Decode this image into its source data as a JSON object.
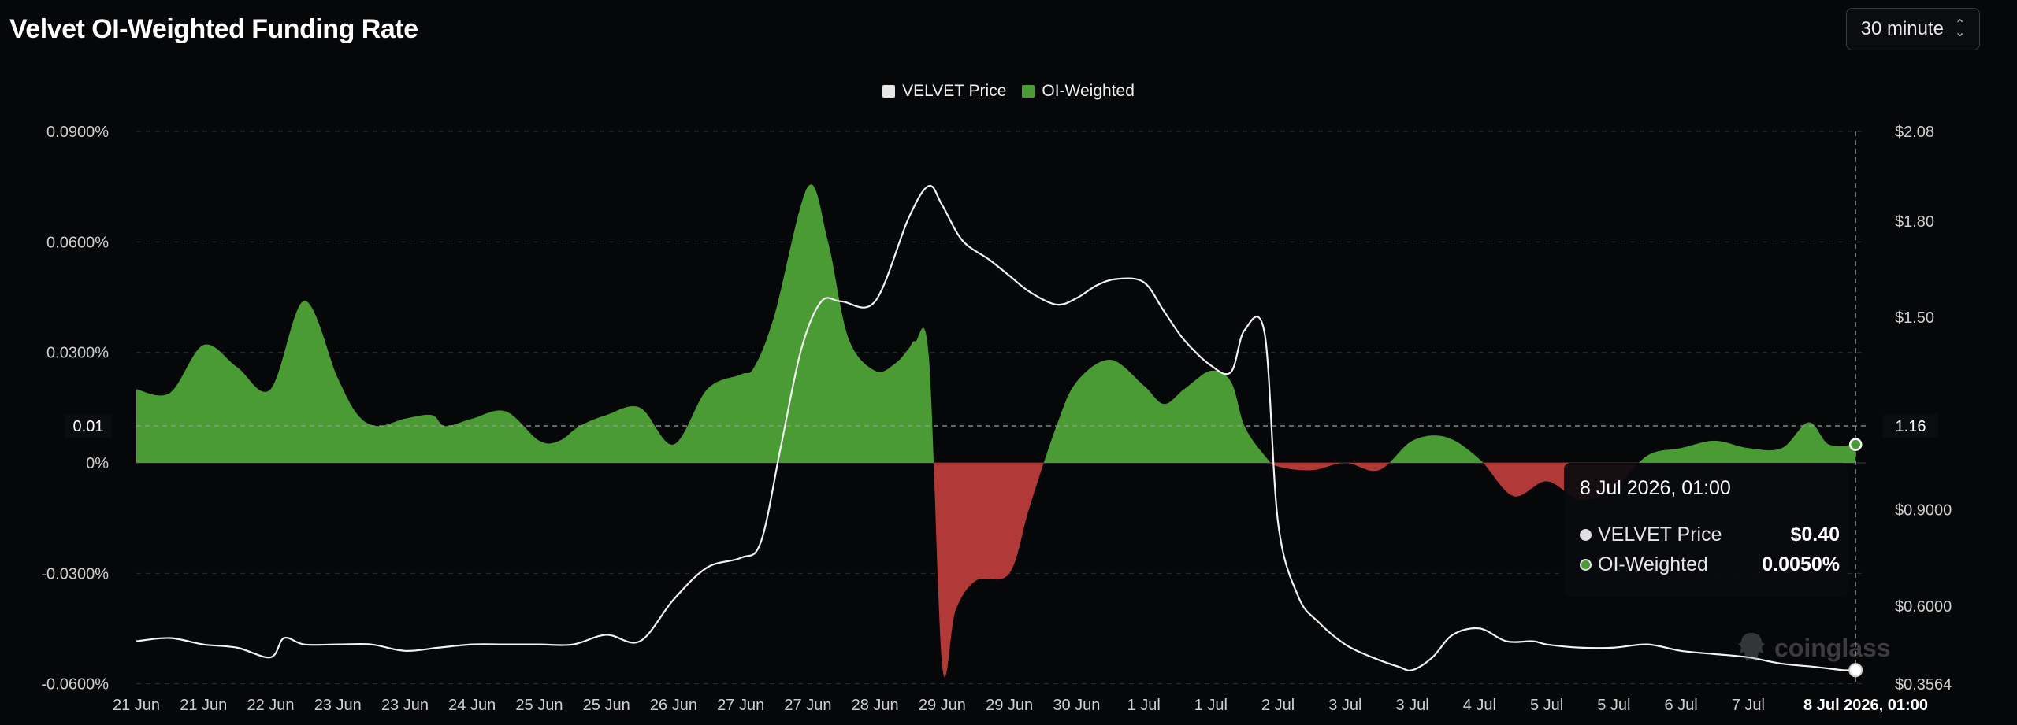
{
  "page": {
    "title": "Velvet OI-Weighted Funding Rate"
  },
  "controls": {
    "interval_label": "30 minute",
    "interval_icon": "chevron-updown-icon"
  },
  "legend": [
    {
      "label": "VELVET Price",
      "color": "#e6e6e6"
    },
    {
      "label": "OI-Weighted",
      "color": "#4a9b34"
    }
  ],
  "tooltip": {
    "time": "8 Jul 2026, 01:00",
    "rows": [
      {
        "label": "VELVET Price",
        "value": "$0.40"
      },
      {
        "label": "OI-Weighted",
        "value": "0.0050%"
      }
    ]
  },
  "crosshair": {
    "left_label": "0.01",
    "right_label": "1.16"
  },
  "watermark": {
    "text": "coinglass"
  },
  "colors": {
    "positive": "#4a9b34",
    "negative": "#b13a38",
    "price": "#f2f2f2",
    "background": "#060709"
  },
  "chart_data": {
    "type": "area",
    "x_labels": [
      "21 Jun",
      "21 Jun",
      "22 Jun",
      "23 Jun",
      "23 Jun",
      "24 Jun",
      "25 Jun",
      "25 Jun",
      "26 Jun",
      "27 Jun",
      "27 Jun",
      "28 Jun",
      "29 Jun",
      "29 Jun",
      "30 Jun",
      "1 Jul",
      "1 Jul",
      "2 Jul",
      "3 Jul",
      "3 Jul",
      "4 Jul",
      "5 Jul",
      "5 Jul",
      "6 Jul",
      "7 Jul",
      "8 Jul 2026, 01:00"
    ],
    "left_axis": {
      "ticks": [
        "0.0900%",
        "0.0600%",
        "0.0300%",
        "0%",
        "-0.0300%",
        "-0.0600%"
      ],
      "tick_values": [
        0.09,
        0.06,
        0.03,
        0,
        -0.03,
        -0.06
      ],
      "range": [
        -0.06,
        0.09
      ]
    },
    "right_axis": {
      "ticks": [
        "$2.08",
        "$1.80",
        "$1.50",
        "$0.9000",
        "$0.6000",
        "$0.3564"
      ],
      "tick_values": [
        2.08,
        1.8,
        1.5,
        0.9,
        0.6,
        0.3564
      ],
      "range": [
        0.3564,
        2.08
      ],
      "scale": "linear"
    },
    "series": [
      {
        "name": "OI-Weighted",
        "axis": "left",
        "unit": "%",
        "x": [
          0,
          0.5,
          1,
          1.5,
          2,
          2.5,
          3,
          3.3,
          3.6,
          4,
          4.4,
          4.6,
          5,
          5.5,
          6,
          6.3,
          6.6,
          7,
          7.5,
          8,
          8.5,
          9,
          9.2,
          9.5,
          10,
          10.3,
          10.6,
          11,
          11.3,
          11.5,
          11.6,
          11.8,
          12,
          12.2,
          12.5,
          13,
          13.3,
          13.7,
          14,
          14.5,
          15,
          15.3,
          15.6,
          16,
          16.3,
          16.5,
          16.8,
          17,
          17.5,
          18,
          18.5,
          19,
          19.5,
          20,
          20.5,
          21,
          21.5,
          22,
          22.5,
          23,
          23.5,
          24,
          24.5,
          24.9,
          25.2,
          25.6
        ],
        "values": [
          0.02,
          0.019,
          0.032,
          0.026,
          0.02,
          0.044,
          0.023,
          0.013,
          0.01,
          0.012,
          0.013,
          0.01,
          0.012,
          0.014,
          0.006,
          0.006,
          0.01,
          0.013,
          0.015,
          0.005,
          0.02,
          0.024,
          0.026,
          0.04,
          0.075,
          0.06,
          0.034,
          0.025,
          0.027,
          0.031,
          0.033,
          0.029,
          -0.055,
          -0.04,
          -0.032,
          -0.03,
          -0.012,
          0.01,
          0.022,
          0.028,
          0.021,
          0.016,
          0.02,
          0.025,
          0.022,
          0.01,
          0.002,
          -0.001,
          -0.002,
          0.0,
          -0.002,
          0.006,
          0.007,
          0.001,
          -0.009,
          -0.005,
          -0.01,
          -0.007,
          0.002,
          0.004,
          0.006,
          0.004,
          0.004,
          0.011,
          0.005,
          0.005
        ]
      },
      {
        "name": "VELVET Price",
        "axis": "right",
        "unit": "$",
        "x": [
          0,
          0.5,
          1,
          1.5,
          2,
          2.2,
          2.5,
          3,
          3.5,
          4,
          4.5,
          5,
          5.5,
          6,
          6.5,
          7,
          7.5,
          8,
          8.5,
          9,
          9.3,
          9.6,
          9.9,
          10.2,
          10.5,
          11,
          11.5,
          11.8,
          12,
          12.3,
          12.7,
          13,
          13.3,
          13.7,
          14,
          14.3,
          14.6,
          15,
          15.3,
          15.6,
          16,
          16.3,
          16.5,
          16.8,
          17,
          17.3,
          17.6,
          18,
          18.4,
          18.8,
          19,
          19.3,
          19.6,
          20,
          20.4,
          20.8,
          21,
          21.5,
          22,
          22.5,
          23,
          23.5,
          24,
          24.5,
          25,
          25.4,
          25.6
        ],
        "values": [
          0.49,
          0.5,
          0.48,
          0.47,
          0.44,
          0.5,
          0.48,
          0.48,
          0.48,
          0.46,
          0.47,
          0.48,
          0.48,
          0.48,
          0.48,
          0.51,
          0.49,
          0.62,
          0.72,
          0.75,
          0.8,
          1.1,
          1.4,
          1.55,
          1.55,
          1.55,
          1.81,
          1.91,
          1.85,
          1.74,
          1.68,
          1.63,
          1.58,
          1.54,
          1.56,
          1.6,
          1.62,
          1.61,
          1.52,
          1.43,
          1.35,
          1.33,
          1.46,
          1.45,
          0.86,
          0.63,
          0.55,
          0.48,
          0.44,
          0.41,
          0.4,
          0.44,
          0.51,
          0.53,
          0.49,
          0.49,
          0.48,
          0.47,
          0.47,
          0.48,
          0.46,
          0.45,
          0.44,
          0.42,
          0.41,
          0.4,
          0.4
        ]
      }
    ],
    "grid": true,
    "legend_position": "top-center"
  }
}
